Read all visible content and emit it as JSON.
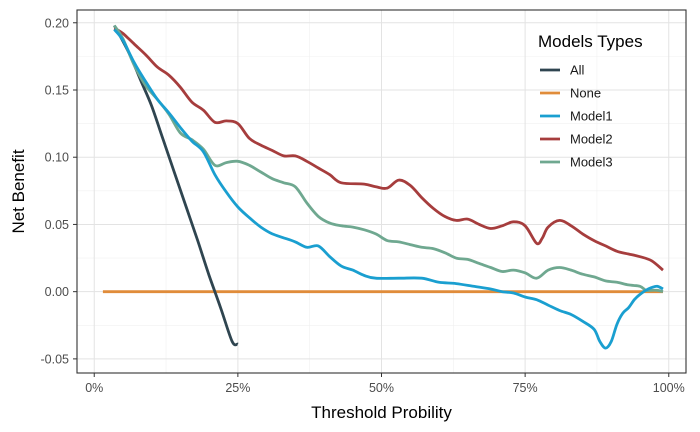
{
  "chart_data": {
    "type": "line",
    "title": "",
    "xlabel": "Threshold Probility",
    "ylabel": "Net Benefit",
    "xlim": [
      -0.03,
      1.03
    ],
    "ylim": [
      -0.0605,
      0.2095
    ],
    "x_ticks": [
      0,
      0.25,
      0.5,
      0.75,
      1.0
    ],
    "x_tick_labels": [
      "0%",
      "25%",
      "50%",
      "75%",
      "100%"
    ],
    "y_ticks": [
      -0.05,
      0.0,
      0.05,
      0.1,
      0.15,
      0.2
    ],
    "y_tick_labels": [
      "-0.05",
      "0.00",
      "0.05",
      "0.10",
      "0.15",
      "0.20"
    ],
    "grid": true,
    "legend": {
      "title": "Models Types",
      "position": "top-right"
    },
    "series": [
      {
        "name": "All",
        "color": "#2f4550",
        "points": [
          [
            0.035,
            0.198
          ],
          [
            0.06,
            0.178
          ],
          [
            0.08,
            0.158
          ],
          [
            0.1,
            0.138
          ],
          [
            0.12,
            0.113
          ],
          [
            0.14,
            0.088
          ],
          [
            0.16,
            0.063
          ],
          [
            0.18,
            0.038
          ],
          [
            0.2,
            0.012
          ],
          [
            0.22,
            -0.012
          ],
          [
            0.24,
            -0.037
          ],
          [
            0.25,
            -0.039
          ]
        ]
      },
      {
        "name": "None",
        "color": "#e08c3a",
        "points": [
          [
            0.015,
            0.0
          ],
          [
            0.99,
            0.0
          ]
        ]
      },
      {
        "name": "Model1",
        "color": "#1a9fd0",
        "points": [
          [
            0.035,
            0.195
          ],
          [
            0.05,
            0.187
          ],
          [
            0.07,
            0.17
          ],
          [
            0.09,
            0.156
          ],
          [
            0.11,
            0.143
          ],
          [
            0.13,
            0.133
          ],
          [
            0.15,
            0.122
          ],
          [
            0.17,
            0.112
          ],
          [
            0.19,
            0.104
          ],
          [
            0.21,
            0.087
          ],
          [
            0.23,
            0.074
          ],
          [
            0.25,
            0.063
          ],
          [
            0.27,
            0.055
          ],
          [
            0.29,
            0.048
          ],
          [
            0.31,
            0.043
          ],
          [
            0.33,
            0.04
          ],
          [
            0.35,
            0.037
          ],
          [
            0.37,
            0.033
          ],
          [
            0.39,
            0.034
          ],
          [
            0.41,
            0.026
          ],
          [
            0.43,
            0.019
          ],
          [
            0.45,
            0.016
          ],
          [
            0.47,
            0.012
          ],
          [
            0.49,
            0.01
          ],
          [
            0.53,
            0.01
          ],
          [
            0.57,
            0.01
          ],
          [
            0.6,
            0.007
          ],
          [
            0.63,
            0.006
          ],
          [
            0.66,
            0.004
          ],
          [
            0.69,
            0.002
          ],
          [
            0.71,
            0.0
          ],
          [
            0.73,
            -0.001
          ],
          [
            0.75,
            -0.004
          ],
          [
            0.77,
            -0.006
          ],
          [
            0.79,
            -0.01
          ],
          [
            0.81,
            -0.014
          ],
          [
            0.83,
            -0.017
          ],
          [
            0.85,
            -0.022
          ],
          [
            0.87,
            -0.028
          ],
          [
            0.88,
            -0.037
          ],
          [
            0.89,
            -0.042
          ],
          [
            0.9,
            -0.037
          ],
          [
            0.91,
            -0.024
          ],
          [
            0.92,
            -0.016
          ],
          [
            0.93,
            -0.012
          ],
          [
            0.94,
            -0.006
          ],
          [
            0.95,
            -0.002
          ],
          [
            0.96,
            0.001
          ],
          [
            0.97,
            0.003
          ],
          [
            0.98,
            0.004
          ],
          [
            0.99,
            0.002
          ]
        ]
      },
      {
        "name": "Model2",
        "color": "#a63d3d",
        "points": [
          [
            0.035,
            0.196
          ],
          [
            0.05,
            0.192
          ],
          [
            0.07,
            0.184
          ],
          [
            0.09,
            0.176
          ],
          [
            0.11,
            0.167
          ],
          [
            0.13,
            0.161
          ],
          [
            0.15,
            0.152
          ],
          [
            0.17,
            0.141
          ],
          [
            0.19,
            0.135
          ],
          [
            0.21,
            0.126
          ],
          [
            0.23,
            0.127
          ],
          [
            0.25,
            0.125
          ],
          [
            0.27,
            0.114
          ],
          [
            0.29,
            0.109
          ],
          [
            0.31,
            0.105
          ],
          [
            0.33,
            0.101
          ],
          [
            0.35,
            0.101
          ],
          [
            0.37,
            0.097
          ],
          [
            0.39,
            0.092
          ],
          [
            0.41,
            0.087
          ],
          [
            0.43,
            0.081
          ],
          [
            0.47,
            0.08
          ],
          [
            0.49,
            0.078
          ],
          [
            0.51,
            0.077
          ],
          [
            0.53,
            0.083
          ],
          [
            0.55,
            0.079
          ],
          [
            0.57,
            0.07
          ],
          [
            0.59,
            0.062
          ],
          [
            0.61,
            0.056
          ],
          [
            0.63,
            0.053
          ],
          [
            0.65,
            0.054
          ],
          [
            0.67,
            0.05
          ],
          [
            0.69,
            0.047
          ],
          [
            0.71,
            0.049
          ],
          [
            0.73,
            0.052
          ],
          [
            0.75,
            0.049
          ],
          [
            0.77,
            0.036
          ],
          [
            0.78,
            0.04
          ],
          [
            0.79,
            0.048
          ],
          [
            0.81,
            0.053
          ],
          [
            0.83,
            0.049
          ],
          [
            0.85,
            0.043
          ],
          [
            0.87,
            0.038
          ],
          [
            0.89,
            0.034
          ],
          [
            0.91,
            0.03
          ],
          [
            0.93,
            0.028
          ],
          [
            0.95,
            0.026
          ],
          [
            0.97,
            0.023
          ],
          [
            0.99,
            0.016
          ]
        ]
      },
      {
        "name": "Model3",
        "color": "#6fa890",
        "points": [
          [
            0.035,
            0.198
          ],
          [
            0.05,
            0.188
          ],
          [
            0.07,
            0.168
          ],
          [
            0.09,
            0.153
          ],
          [
            0.11,
            0.143
          ],
          [
            0.13,
            0.132
          ],
          [
            0.15,
            0.118
          ],
          [
            0.17,
            0.113
          ],
          [
            0.19,
            0.106
          ],
          [
            0.21,
            0.094
          ],
          [
            0.23,
            0.096
          ],
          [
            0.25,
            0.097
          ],
          [
            0.27,
            0.094
          ],
          [
            0.29,
            0.089
          ],
          [
            0.31,
            0.084
          ],
          [
            0.33,
            0.081
          ],
          [
            0.35,
            0.078
          ],
          [
            0.37,
            0.066
          ],
          [
            0.39,
            0.056
          ],
          [
            0.41,
            0.051
          ],
          [
            0.43,
            0.049
          ],
          [
            0.45,
            0.048
          ],
          [
            0.47,
            0.046
          ],
          [
            0.49,
            0.043
          ],
          [
            0.51,
            0.038
          ],
          [
            0.53,
            0.037
          ],
          [
            0.55,
            0.035
          ],
          [
            0.57,
            0.033
          ],
          [
            0.59,
            0.032
          ],
          [
            0.61,
            0.029
          ],
          [
            0.63,
            0.025
          ],
          [
            0.65,
            0.024
          ],
          [
            0.67,
            0.021
          ],
          [
            0.69,
            0.018
          ],
          [
            0.71,
            0.015
          ],
          [
            0.73,
            0.016
          ],
          [
            0.75,
            0.014
          ],
          [
            0.77,
            0.01
          ],
          [
            0.79,
            0.016
          ],
          [
            0.81,
            0.018
          ],
          [
            0.83,
            0.016
          ],
          [
            0.85,
            0.013
          ],
          [
            0.87,
            0.011
          ],
          [
            0.89,
            0.008
          ],
          [
            0.91,
            0.007
          ],
          [
            0.93,
            0.005
          ],
          [
            0.95,
            0.004
          ],
          [
            0.96,
            0.001
          ],
          [
            0.97,
            0.001
          ],
          [
            0.98,
            0.001
          ],
          [
            0.99,
            0.0
          ]
        ]
      }
    ]
  }
}
